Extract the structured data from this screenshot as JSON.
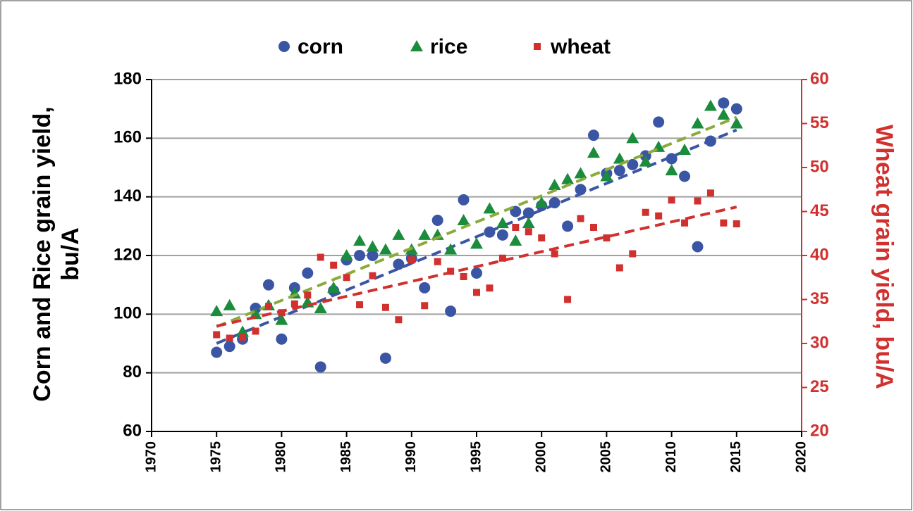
{
  "chart_data": {
    "type": "scatter",
    "legend": [
      "corn",
      "rice",
      "wheat"
    ],
    "ylabel": [
      "Corn and Rice grain yield,",
      "bu/A"
    ],
    "y2label": "Wheat grain yield, bu/A",
    "x": [
      1975,
      1976,
      1977,
      1978,
      1979,
      1980,
      1981,
      1982,
      1983,
      1984,
      1985,
      1986,
      1987,
      1988,
      1989,
      1990,
      1991,
      1992,
      1993,
      1994,
      1995,
      1996,
      1997,
      1998,
      1999,
      2000,
      2001,
      2002,
      2003,
      2004,
      2005,
      2006,
      2007,
      2008,
      2009,
      2010,
      2011,
      2012,
      2013,
      2014,
      2015
    ],
    "series": [
      {
        "name": "corn",
        "color": "#3b55a5",
        "marker": "circle",
        "trend_color": "#3b55a5",
        "values": [
          87,
          89,
          91.5,
          102,
          110,
          91.5,
          109,
          114,
          82,
          108,
          118.5,
          120,
          120,
          85,
          117,
          119,
          109,
          132,
          101,
          139,
          114,
          128,
          127,
          135,
          134.5,
          137,
          138,
          130,
          142.5,
          161,
          148,
          149,
          151,
          154,
          165.5,
          153,
          147,
          123,
          159,
          172,
          170
        ]
      },
      {
        "name": "rice",
        "color": "#1b8b3c",
        "marker": "triangle",
        "trend_color": "#8aab3c",
        "values": [
          101,
          103,
          94,
          100,
          103,
          98,
          107,
          104,
          102,
          109,
          120,
          125,
          123,
          122,
          127,
          122,
          127,
          127,
          122,
          132,
          124,
          136,
          131,
          125,
          131,
          138,
          144,
          146,
          148,
          155,
          147,
          153,
          160,
          152,
          157,
          149,
          156,
          165,
          171,
          168,
          165
        ]
      },
      {
        "name": "wheat",
        "color": "#d0312f",
        "marker": "square",
        "axis": "y2",
        "trend_color": "#d0312f",
        "values": [
          31,
          30.6,
          30.7,
          31.4,
          34.2,
          33.5,
          34.5,
          35.5,
          39.8,
          38.9,
          37.5,
          34.4,
          37.7,
          34.1,
          32.7,
          39.5,
          34.3,
          39.3,
          38.2,
          37.6,
          35.8,
          36.3,
          39.7,
          43.2,
          42.7,
          42.0,
          40.2,
          35.0,
          44.2,
          43.2,
          42.0,
          38.6,
          40.2,
          44.9,
          44.5,
          46.3,
          43.7,
          46.2,
          47.1,
          43.7,
          43.6
        ]
      }
    ],
    "trendline": true,
    "xlim": [
      1970,
      2020
    ],
    "xticks": [
      1970,
      1975,
      1980,
      1985,
      1990,
      1995,
      2000,
      2005,
      2010,
      2015,
      2020
    ],
    "ylim": [
      60,
      180
    ],
    "yticks": [
      60,
      80,
      100,
      120,
      140,
      160,
      180
    ],
    "y2lim": [
      20,
      60
    ],
    "y2ticks": [
      20,
      25,
      30,
      35,
      40,
      45,
      50,
      55,
      60
    ],
    "y2color": "#d0312f",
    "grid": true
  }
}
